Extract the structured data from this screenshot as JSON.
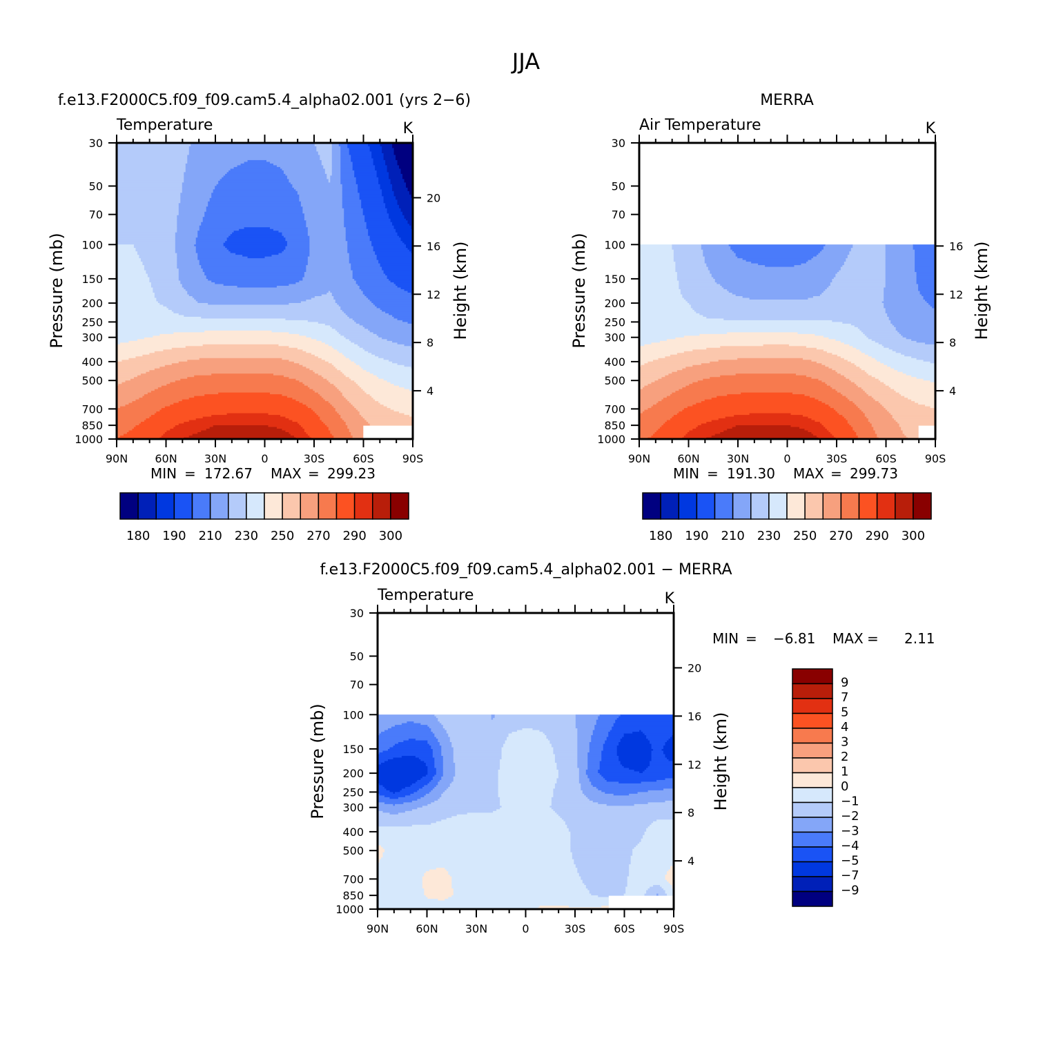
{
  "page_title": "JJA",
  "colors": {
    "temp_palette": [
      "#000080",
      "#0020b8",
      "#0038e0",
      "#1a53f5",
      "#4a7bfa",
      "#84a6f8",
      "#b4cbfa",
      "#d6e8fc",
      "#fde8d8",
      "#fbc7ad",
      "#f7a07e",
      "#f77a4e",
      "#fc5222",
      "#e23012",
      "#b81e0a",
      "#890000"
    ],
    "diff_palette": [
      "#000080",
      "#0020b8",
      "#0038e0",
      "#1a53f5",
      "#4a7bfa",
      "#84a6f8",
      "#b4cbfa",
      "#d6e8fc",
      "#fde8d8",
      "#fbc7ad",
      "#f7a07e",
      "#f77a4e",
      "#fc5222",
      "#e23012",
      "#b81e0a",
      "#890000"
    ]
  },
  "panels": [
    {
      "id": "model",
      "title": "f.e13.F2000C5.f09_f09.cam5.4_alpha02.001 (yrs 2−6)",
      "left_label": "Temperature",
      "units": "K",
      "y_title": "Pressure (mb)",
      "y2_title": "Height (km)",
      "min_label": "MIN",
      "min_value": "172.67",
      "max_label": "MAX",
      "max_value": "299.23",
      "colorbar_labels": [
        "180",
        "190",
        "210",
        "230",
        "250",
        "270",
        "290",
        "300"
      ]
    },
    {
      "id": "obs",
      "title": "MERRA",
      "left_label": "Air Temperature",
      "units": "K",
      "y_title": "Pressure (mb)",
      "y2_title": "Height (km)",
      "min_label": "MIN",
      "min_value": "191.30",
      "max_label": "MAX",
      "max_value": "299.73",
      "colorbar_labels": [
        "180",
        "190",
        "210",
        "230",
        "250",
        "270",
        "290",
        "300"
      ]
    },
    {
      "id": "diff",
      "title": "f.e13.F2000C5.f09_f09.cam5.4_alpha02.001 − MERRA",
      "left_label": "Temperature",
      "units": "K",
      "y_title": "Pressure (mb)",
      "y2_title": "Height (km)",
      "min_label": "MIN",
      "min_value": "−6.81",
      "max_label": "MAX",
      "max_value": "2.11",
      "colorbar_labels": [
        "9",
        "7",
        "5",
        "4",
        "3",
        "2",
        "1",
        "0",
        "−1",
        "−2",
        "−3",
        "−4",
        "−5",
        "−7",
        "−9"
      ]
    }
  ],
  "chart_data": [
    {
      "type": "heatmap",
      "title": "f.e13.F2000C5.f09_f09.cam5.4_alpha02.001 (yrs 2−6)",
      "variable": "Temperature",
      "units": "K",
      "xlabel": "",
      "ylabel": "Pressure (mb)",
      "y2label": "Height (km)",
      "x_ticks": [
        "90N",
        "60N",
        "30N",
        "0",
        "30S",
        "60S",
        "90S"
      ],
      "y_ticks": [
        "30",
        "50",
        "70",
        "100",
        "150",
        "200",
        "250",
        "300",
        "400",
        "500",
        "700",
        "850",
        "1000"
      ],
      "y2_ticks": [
        "20",
        "16",
        "12",
        "8",
        "4"
      ],
      "xlim": [
        90,
        -90
      ],
      "ylim": [
        1000,
        30
      ],
      "y_scale": "log",
      "min": 172.67,
      "max": 299.23,
      "levels": [
        180,
        185,
        190,
        200,
        210,
        220,
        230,
        240,
        250,
        260,
        270,
        280,
        290,
        295,
        300
      ],
      "lats": [
        90,
        80,
        70,
        60,
        50,
        40,
        30,
        20,
        10,
        0,
        -10,
        -20,
        -30,
        -40,
        -50,
        -60,
        -70,
        -80,
        -90
      ],
      "pressures": [
        30,
        50,
        70,
        100,
        150,
        200,
        250,
        300,
        400,
        500,
        700,
        850,
        1000
      ],
      "values": [
        [
          228,
          228,
          228,
          228,
          222,
          218,
          214,
          213,
          212,
          212,
          213,
          215,
          220,
          222,
          200,
          192,
          185,
          178,
          173
        ],
        [
          228,
          228,
          228,
          226,
          220,
          215,
          210,
          208,
          207,
          207,
          208,
          211,
          218,
          220,
          205,
          197,
          190,
          183,
          178
        ],
        [
          229,
          229,
          228,
          225,
          218,
          212,
          206,
          203,
          202,
          202,
          203,
          207,
          215,
          218,
          208,
          200,
          193,
          187,
          182
        ],
        [
          230,
          230,
          229,
          225,
          216,
          208,
          202,
          198,
          197,
          197,
          198,
          203,
          212,
          217,
          210,
          203,
          197,
          192,
          188
        ],
        [
          231,
          231,
          230,
          227,
          218,
          212,
          208,
          206,
          205,
          205,
          206,
          208,
          214,
          218,
          212,
          207,
          202,
          198,
          195
        ],
        [
          232,
          232,
          231,
          229,
          224,
          220,
          219,
          219,
          219,
          219,
          219,
          220,
          222,
          222,
          216,
          212,
          208,
          205,
          203
        ],
        [
          233,
          234,
          234,
          234,
          233,
          233,
          233,
          233,
          233,
          233,
          232,
          231,
          230,
          228,
          222,
          218,
          214,
          211,
          209
        ],
        [
          236,
          238,
          240,
          242,
          243,
          244,
          245,
          245,
          245,
          245,
          244,
          242,
          239,
          235,
          229,
          224,
          220,
          217,
          215
        ],
        [
          250,
          252,
          255,
          258,
          260,
          262,
          262,
          263,
          263,
          263,
          262,
          259,
          254,
          249,
          242,
          236,
          232,
          229,
          227
        ],
        [
          258,
          261,
          265,
          268,
          271,
          273,
          274,
          274,
          274,
          274,
          273,
          270,
          265,
          259,
          252,
          246,
          241,
          238,
          236
        ],
        [
          270,
          273,
          277,
          281,
          284,
          286,
          287,
          288,
          288,
          288,
          287,
          284,
          279,
          272,
          264,
          257,
          252,
          249,
          247
        ],
        [
          276,
          279,
          283,
          288,
          291,
          293,
          295,
          295,
          295,
          295,
          294,
          291,
          285,
          278,
          270,
          262,
          257,
          255,
          253
        ],
        [
          280,
          283,
          287,
          292,
          295,
          297,
          298,
          299,
          299,
          299,
          298,
          295,
          289,
          282,
          273,
          265,
          null,
          null,
          null
        ]
      ]
    },
    {
      "type": "heatmap",
      "title": "MERRA",
      "variable": "Air Temperature",
      "units": "K",
      "xlabel": "",
      "ylabel": "Pressure (mb)",
      "y2label": "Height (km)",
      "x_ticks": [
        "90N",
        "60N",
        "30N",
        "0",
        "30S",
        "60S",
        "90S"
      ],
      "y_ticks": [
        "30",
        "50",
        "70",
        "100",
        "150",
        "200",
        "250",
        "300",
        "400",
        "500",
        "700",
        "850",
        "1000"
      ],
      "y2_ticks": [
        "16",
        "12",
        "8",
        "4"
      ],
      "xlim": [
        90,
        -90
      ],
      "ylim": [
        1000,
        30
      ],
      "y_scale": "log",
      "min": 191.3,
      "max": 299.73,
      "levels": [
        180,
        185,
        190,
        200,
        210,
        220,
        230,
        240,
        250,
        260,
        270,
        280,
        290,
        295,
        300
      ],
      "lats": [
        90,
        80,
        70,
        60,
        50,
        40,
        30,
        20,
        10,
        0,
        -10,
        -20,
        -30,
        -40,
        -50,
        -60,
        -70,
        -80,
        -90
      ],
      "pressures": [
        30,
        50,
        70,
        100,
        150,
        200,
        250,
        300,
        400,
        500,
        700,
        850,
        1000
      ],
      "values": [
        [
          null,
          null,
          null,
          null,
          null,
          null,
          null,
          null,
          null,
          null,
          null,
          null,
          null,
          null,
          null,
          null,
          null,
          null,
          null
        ],
        [
          null,
          null,
          null,
          null,
          null,
          null,
          null,
          null,
          null,
          null,
          null,
          null,
          null,
          null,
          null,
          null,
          null,
          null,
          null
        ],
        [
          null,
          null,
          null,
          null,
          null,
          null,
          null,
          null,
          null,
          null,
          null,
          null,
          null,
          null,
          null,
          null,
          null,
          null,
          null
        ],
        [
          232,
          231,
          230,
          226,
          218,
          212,
          207,
          205,
          204,
          204,
          205,
          208,
          214,
          220,
          222,
          220,
          214,
          208,
          206
        ],
        [
          234,
          232,
          231,
          228,
          222,
          218,
          215,
          214,
          213,
          213,
          214,
          216,
          221,
          225,
          224,
          220,
          215,
          209,
          207
        ],
        [
          233,
          232,
          231,
          230,
          227,
          224,
          222,
          221,
          221,
          221,
          221,
          222,
          224,
          226,
          224,
          219,
          215,
          211,
          209
        ],
        [
          232,
          232,
          232,
          232,
          231,
          231,
          231,
          231,
          231,
          231,
          231,
          231,
          230,
          229,
          226,
          221,
          217,
          214,
          212
        ],
        [
          235,
          237,
          239,
          241,
          242,
          243,
          244,
          244,
          244,
          244,
          243,
          241,
          238,
          234,
          229,
          224,
          220,
          217,
          216
        ],
        [
          248,
          251,
          254,
          257,
          259,
          261,
          262,
          262,
          263,
          263,
          262,
          259,
          254,
          249,
          243,
          238,
          234,
          231,
          229
        ],
        [
          256,
          260,
          264,
          268,
          271,
          273,
          274,
          274,
          274,
          274,
          273,
          270,
          265,
          259,
          253,
          248,
          244,
          241,
          239
        ],
        [
          268,
          272,
          277,
          281,
          284,
          286,
          287,
          288,
          288,
          288,
          287,
          284,
          279,
          273,
          266,
          260,
          255,
          252,
          250
        ],
        [
          274,
          278,
          283,
          288,
          291,
          293,
          295,
          295,
          295,
          295,
          294,
          291,
          286,
          279,
          271,
          264,
          259,
          256,
          254
        ],
        [
          278,
          282,
          287,
          292,
          295,
          297,
          299,
          299,
          299,
          299,
          298,
          295,
          290,
          283,
          274,
          267,
          261,
          258,
          null
        ]
      ]
    },
    {
      "type": "heatmap",
      "title": "f.e13.F2000C5.f09_f09.cam5.4_alpha02.001 − MERRA",
      "variable": "Temperature",
      "units": "K",
      "xlabel": "",
      "ylabel": "Pressure (mb)",
      "y2label": "Height (km)",
      "x_ticks": [
        "90N",
        "60N",
        "30N",
        "0",
        "30S",
        "60S",
        "90S"
      ],
      "y_ticks": [
        "30",
        "50",
        "70",
        "100",
        "150",
        "200",
        "250",
        "300",
        "400",
        "500",
        "700",
        "850",
        "1000"
      ],
      "y2_ticks": [
        "20",
        "16",
        "12",
        "8",
        "4"
      ],
      "xlim": [
        90,
        -90
      ],
      "ylim": [
        1000,
        30
      ],
      "y_scale": "log",
      "min": -6.81,
      "max": 2.11,
      "levels": [
        -9,
        -7,
        -5,
        -4,
        -3,
        -2,
        -1,
        0,
        1,
        2,
        3,
        4,
        5,
        7,
        9
      ],
      "lats": [
        90,
        80,
        70,
        60,
        50,
        40,
        30,
        20,
        10,
        0,
        -10,
        -20,
        -30,
        -40,
        -50,
        -60,
        -70,
        -80,
        -90
      ],
      "pressures": [
        30,
        50,
        70,
        100,
        150,
        200,
        250,
        300,
        400,
        500,
        700,
        850,
        1000
      ],
      "values": [
        [
          null,
          null,
          null,
          null,
          null,
          null,
          null,
          null,
          null,
          null,
          null,
          null,
          null,
          null,
          null,
          null,
          null,
          null,
          null
        ],
        [
          null,
          null,
          null,
          null,
          null,
          null,
          null,
          null,
          null,
          null,
          null,
          null,
          null,
          null,
          null,
          null,
          null,
          null,
          null
        ],
        [
          null,
          null,
          null,
          null,
          null,
          null,
          null,
          null,
          null,
          null,
          null,
          null,
          null,
          null,
          null,
          null,
          null,
          null,
          null
        ],
        [
          -2.2,
          -2.4,
          -2.6,
          -2.3,
          -1.5,
          -1.2,
          -1.4,
          -2.1,
          -1.5,
          -1.3,
          -1.4,
          -1.6,
          -2.0,
          -2.6,
          -3.4,
          -4.2,
          -4.4,
          -4.1,
          -4.0
        ],
        [
          -3.5,
          -4.2,
          -4.6,
          -4.5,
          -2.8,
          -1.4,
          -1.3,
          -1.5,
          -0.6,
          -0.5,
          -0.6,
          -1.2,
          -1.8,
          -3.2,
          -4.4,
          -5.6,
          -5.7,
          -4.7,
          -5.7
        ],
        [
          -5.8,
          -6.4,
          -6.2,
          -5.2,
          -3.0,
          -1.6,
          -1.3,
          -1.2,
          -0.6,
          -0.5,
          -0.6,
          -1.0,
          -1.6,
          -3.6,
          -4.6,
          -4.8,
          -5.0,
          -4.8,
          -4.4
        ],
        [
          -4.3,
          -5.2,
          -4.4,
          -3.2,
          -2.0,
          -1.4,
          -1.2,
          -1.1,
          -0.8,
          -0.7,
          -0.8,
          -1.1,
          -1.5,
          -2.6,
          -3.2,
          -3.3,
          -3.0,
          -2.8,
          -2.6
        ],
        [
          -2.2,
          -2.6,
          -2.2,
          -1.8,
          -1.4,
          -1.2,
          -1.1,
          -1.1,
          -0.9,
          -0.9,
          -0.9,
          -1.1,
          -1.2,
          -1.6,
          -1.8,
          -1.9,
          -1.7,
          -1.6,
          -1.5
        ],
        [
          -0.6,
          -0.5,
          -0.6,
          -0.7,
          -0.6,
          -0.5,
          -0.6,
          -0.6,
          -0.6,
          -0.6,
          -0.6,
          -0.8,
          -1.1,
          -1.3,
          -1.5,
          -1.5,
          -1.2,
          -0.4,
          -0.5
        ],
        [
          0.3,
          -0.4,
          -0.5,
          -0.5,
          -0.4,
          -0.5,
          -0.6,
          -0.5,
          -0.5,
          -0.5,
          -0.6,
          -0.7,
          -1.1,
          -1.3,
          -1.3,
          -1.2,
          -0.8,
          -0.4,
          -0.5
        ],
        [
          -0.4,
          -0.5,
          -0.5,
          0.2,
          0.3,
          -0.3,
          -0.2,
          -0.4,
          -0.6,
          -0.5,
          -0.6,
          -0.7,
          -0.9,
          -1.2,
          -1.3,
          -1.1,
          -0.6,
          -0.4,
          0.5
        ],
        [
          -0.3,
          -0.4,
          -0.5,
          0.1,
          0.3,
          -0.2,
          -0.6,
          -0.5,
          -0.4,
          -0.4,
          -0.5,
          -0.5,
          -0.7,
          -1.0,
          -1.2,
          -1.0,
          -0.6,
          -2.2,
          -0.3
        ],
        [
          -0.8,
          -0.7,
          -0.6,
          -0.5,
          -0.5,
          -0.7,
          -0.6,
          -0.5,
          -0.5,
          -0.5,
          0.2,
          0.2,
          0.1,
          0.2,
          0.3,
          null,
          null,
          null,
          null
        ]
      ]
    }
  ]
}
